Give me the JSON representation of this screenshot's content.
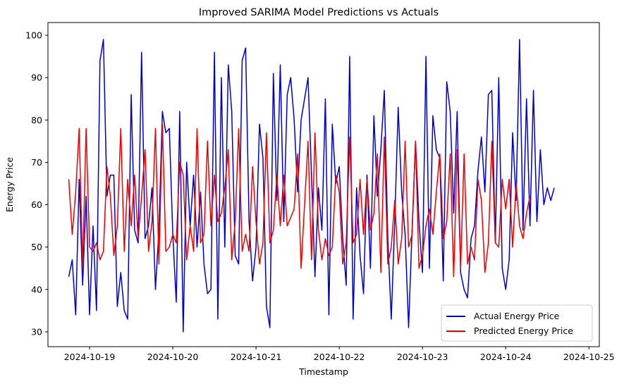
{
  "chart_data": {
    "type": "line",
    "title": "Improved SARIMA Model Predictions vs Actuals",
    "xlabel": "Timestamp",
    "ylabel": "Energy Price",
    "x_start": "2024-10-18 18:00",
    "x_step_hours": 1,
    "xlim": [
      "2024-10-18 12:00",
      "2024-10-25 03:00"
    ],
    "ylim": [
      26.5,
      103.0
    ],
    "xticks": [
      "2024-10-19",
      "2024-10-20",
      "2024-10-21",
      "2024-10-22",
      "2024-10-23",
      "2024-10-24",
      "2024-10-25"
    ],
    "yticks": [
      30,
      40,
      50,
      60,
      70,
      80,
      90,
      100
    ],
    "grid": false,
    "legend_position": "lower-right",
    "series": [
      {
        "name": "Actual Energy Price",
        "color": "#0000cd",
        "values": [
          43,
          47,
          34,
          66,
          41,
          62,
          34,
          55,
          35,
          94,
          99,
          62,
          67,
          67,
          36,
          44,
          35,
          33,
          86,
          54,
          51,
          96,
          52,
          55,
          64,
          40,
          54,
          82,
          77,
          78,
          53,
          37,
          82,
          30,
          70,
          55,
          67,
          50,
          63,
          46,
          39,
          40,
          96,
          33,
          90,
          50,
          93,
          82,
          48,
          46,
          94,
          97,
          56,
          42,
          50,
          79,
          71,
          36,
          31,
          91,
          61,
          93,
          56,
          86,
          90,
          80,
          63,
          80,
          85,
          90,
          67,
          43,
          64,
          54,
          85,
          34,
          79,
          65,
          69,
          52,
          41,
          95,
          33,
          64,
          48,
          39,
          67,
          45,
          81,
          62,
          73,
          87,
          52,
          33,
          56,
          83,
          63,
          53,
          31,
          54,
          75,
          56,
          44,
          95,
          45,
          81,
          73,
          71,
          42,
          89,
          82,
          58,
          82,
          44,
          40,
          38,
          52,
          55,
          68,
          76,
          63,
          86,
          87,
          51,
          90,
          45,
          40,
          47,
          77,
          61,
          99,
          54,
          85,
          55,
          87,
          56,
          73,
          60,
          64,
          61,
          64
        ],
        "line_width": 1.5
      },
      {
        "name": "Predicted Energy Price",
        "color": "#ee0000",
        "values": [
          66,
          53,
          63,
          78,
          45,
          78,
          50,
          49,
          51,
          47,
          49,
          69,
          62,
          48,
          55,
          78,
          49,
          66,
          55,
          67,
          52,
          62,
          73,
          49,
          56,
          78,
          46,
          79,
          49,
          50,
          53,
          51,
          70,
          67,
          47,
          55,
          49,
          78,
          51,
          53,
          75,
          55,
          67,
          56,
          58,
          64,
          73,
          47,
          56,
          78,
          49,
          53,
          49,
          69,
          56,
          46,
          51,
          77,
          51,
          54,
          67,
          55,
          67,
          55,
          57,
          59,
          72,
          45,
          60,
          75,
          47,
          77,
          54,
          47,
          52,
          48,
          50,
          67,
          63,
          46,
          51,
          76,
          51,
          53,
          66,
          53,
          66,
          54,
          58,
          72,
          44,
          76,
          46,
          50,
          61,
          46,
          52,
          75,
          50,
          53,
          75,
          45,
          48,
          55,
          59,
          53,
          63,
          72,
          52,
          56,
          72,
          43,
          73,
          45,
          72,
          46,
          50,
          47,
          66,
          61,
          44,
          51,
          75,
          51,
          50,
          66,
          59,
          66,
          50,
          65,
          55,
          52,
          58,
          62
        ],
        "line_width": 1.5
      }
    ]
  }
}
